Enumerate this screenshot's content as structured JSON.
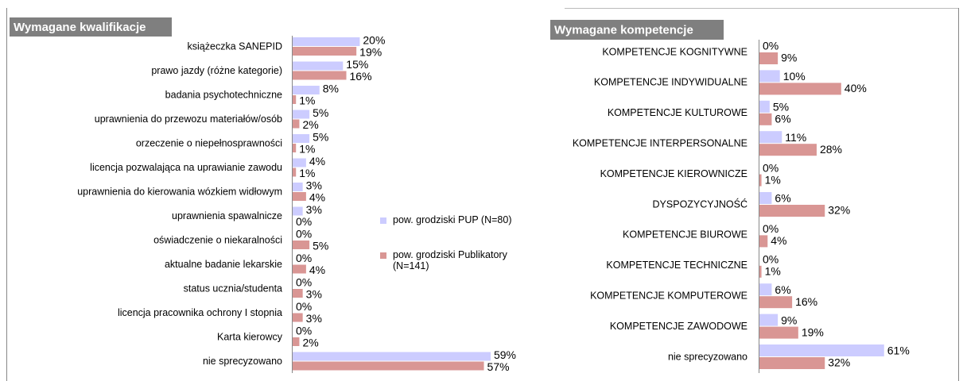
{
  "chart_data": [
    {
      "type": "hbar",
      "title": "Wymagane kwalifikacje",
      "categories": [
        "książeczka SANEPID",
        "prawo jazdy (różne kategorie)",
        "badania psychotechniczne",
        "uprawnienia do przewozu materiałów/osób",
        "orzeczenie o niepełnosprawności",
        "licencja pozwalająca na uprawianie zawodu",
        "uprawnienia do kierowania wózkiem widłowym",
        "uprawnienia spawalnicze",
        "oświadczenie o niekaralności",
        "aktualne badanie lekarskie",
        "status ucznia/studenta",
        "licencja pracownika ochrony I stopnia",
        "Karta kierowcy",
        "nie sprecyzowano"
      ],
      "series": [
        {
          "name": "pow. grodziski PUP (N=80)",
          "color": "#ccccff",
          "values": [
            20,
            15,
            8,
            5,
            5,
            4,
            3,
            3,
            0,
            0,
            0,
            0,
            0,
            59
          ],
          "value_labels": [
            "20%",
            "15%",
            "8%",
            "5%",
            "5%",
            "4%",
            "3%",
            "3%",
            "0%",
            "0%",
            "0%",
            "0%",
            "0%",
            "59%"
          ]
        },
        {
          "name": "pow. grodziski Publikatory (N=141)",
          "color": "#d99694",
          "values": [
            19,
            16,
            1,
            2,
            1,
            1,
            4,
            0,
            5,
            4,
            3,
            3,
            2,
            57
          ],
          "value_labels": [
            "19%",
            "16%",
            "1%",
            "2%",
            "1%",
            "1%",
            "4%",
            "0%",
            "5%",
            "4%",
            "3%",
            "3%",
            "2%",
            "57%"
          ]
        }
      ],
      "legend": true
    },
    {
      "type": "hbar",
      "title": "Wymagane kompetencje",
      "categories": [
        "KOMPETENCJE KOGNITYWNE",
        "KOMPETENCJE INDYWIDUALNE",
        "KOMPETENCJE KULTUROWE",
        "KOMPETENCJE INTERPERSONALNE",
        "KOMPETENCJE KIEROWNICZE",
        "DYSPOZYCYJNOŚĆ",
        "KOMPETENCJE BIUROWE",
        "KOMPETENCJE TECHNICZNE",
        "KOMPETENCJE KOMPUTEROWE",
        "KOMPETENCJE ZAWODOWE",
        "nie sprecyzowano"
      ],
      "series": [
        {
          "color": "#ccccff",
          "values": [
            0,
            10,
            5,
            11,
            0,
            6,
            0,
            0,
            6,
            9,
            61
          ],
          "value_labels": [
            "0%",
            "10%",
            "5%",
            "11%",
            "0%",
            "6%",
            "0%",
            "0%",
            "6%",
            "9%",
            "61%"
          ]
        },
        {
          "color": "#d99694",
          "values": [
            9,
            40,
            6,
            28,
            1,
            32,
            4,
            1,
            16,
            19,
            32
          ],
          "value_labels": [
            "9%",
            "40%",
            "6%",
            "28%",
            "1%",
            "32%",
            "4%",
            "1%",
            "16%",
            "19%",
            "32%"
          ]
        }
      ],
      "legend": false
    }
  ]
}
